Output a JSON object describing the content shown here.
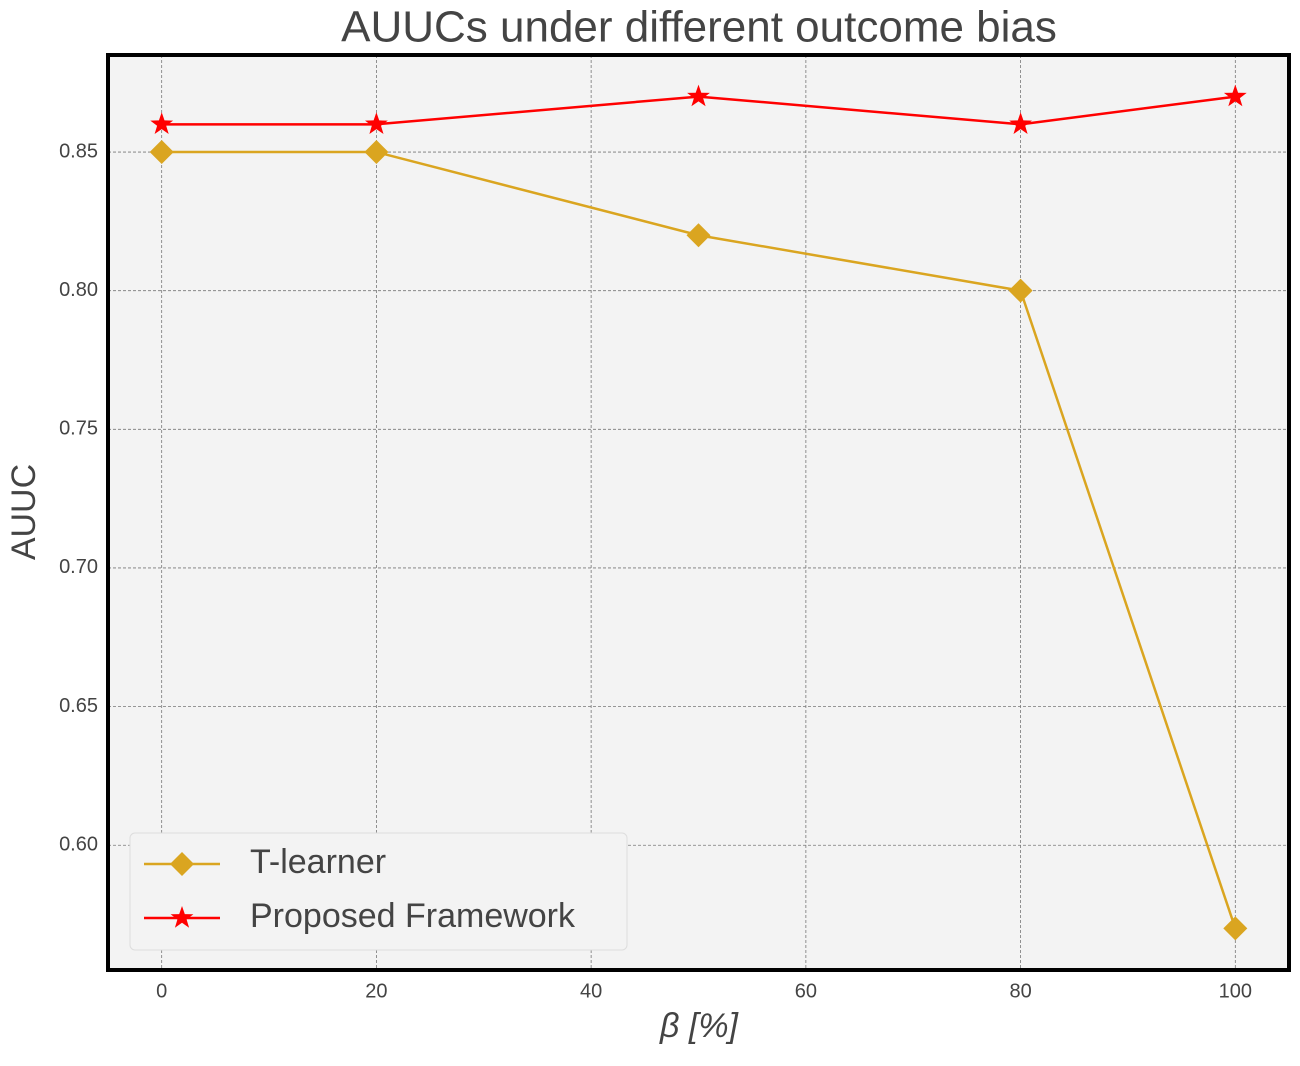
{
  "chart_data": {
    "type": "line",
    "title": "AUUCs under different outcome bias",
    "x_label": "β [%]",
    "y_label": "AUUC",
    "x": [
      0,
      20,
      50,
      80,
      100
    ],
    "series": [
      {
        "name": "T-learner",
        "color": "#daa520",
        "marker": "diamond",
        "values": [
          0.85,
          0.85,
          0.82,
          0.8,
          0.57
        ]
      },
      {
        "name": "Proposed Framework",
        "color": "#ff0000",
        "marker": "star",
        "values": [
          0.86,
          0.86,
          0.87,
          0.86,
          0.87
        ]
      }
    ],
    "xlim": [
      -5,
      105
    ],
    "ylim": [
      0.555,
      0.885
    ],
    "xticks": [
      0,
      20,
      40,
      60,
      80,
      100
    ],
    "yticks": [
      {
        "value": 0.6,
        "label": "0.60"
      },
      {
        "value": 0.65,
        "label": "0.65"
      },
      {
        "value": 0.7,
        "label": "0.70"
      },
      {
        "value": 0.75,
        "label": "0.75"
      },
      {
        "value": 0.8,
        "label": "0.80"
      },
      {
        "value": 0.85,
        "label": "0.85"
      }
    ],
    "grid": true,
    "legend": "lower left"
  }
}
